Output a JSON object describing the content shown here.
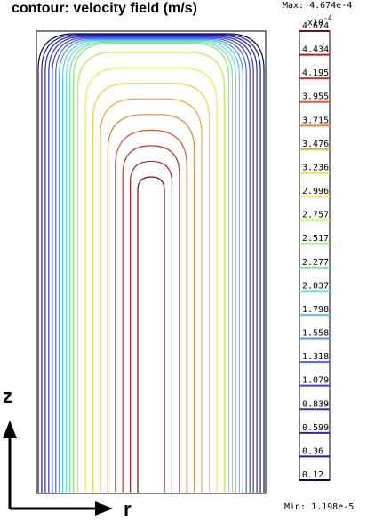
{
  "chart_data": {
    "type": "contour",
    "title": "contour:  velocity field  (m/s)",
    "max_label": "Max: 4.674e-4",
    "min_label": "Min: 1.198e-5",
    "colorbar_multiplier": "x10",
    "colorbar_exponent": "-4",
    "levels": [
      "0.12",
      "0.36",
      "0.599",
      "0.839",
      "1.079",
      "1.318",
      "1.558",
      "1.798",
      "2.037",
      "2.277",
      "2.517",
      "2.757",
      "2.996",
      "3.236",
      "3.476",
      "3.715",
      "3.955",
      "4.195",
      "4.434",
      "4.674"
    ],
    "level_colors": [
      "#0a0a4a",
      "#1e1e8c",
      "#2828b4",
      "#3232c8",
      "#3c3cdc",
      "#4a64e6",
      "#5096ec",
      "#5ac8f0",
      "#64e6dc",
      "#78e6a0",
      "#8cec6e",
      "#b4f05a",
      "#e6f050",
      "#f0d246",
      "#f0aa3c",
      "#e6823c",
      "#dc5a32",
      "#d2322d",
      "#b41e28",
      "#7a0a14"
    ],
    "domain": {
      "r": [
        0,
        1
      ],
      "z": [
        0,
        2
      ]
    },
    "axes": {
      "horizontal": "r",
      "vertical": "z"
    }
  }
}
